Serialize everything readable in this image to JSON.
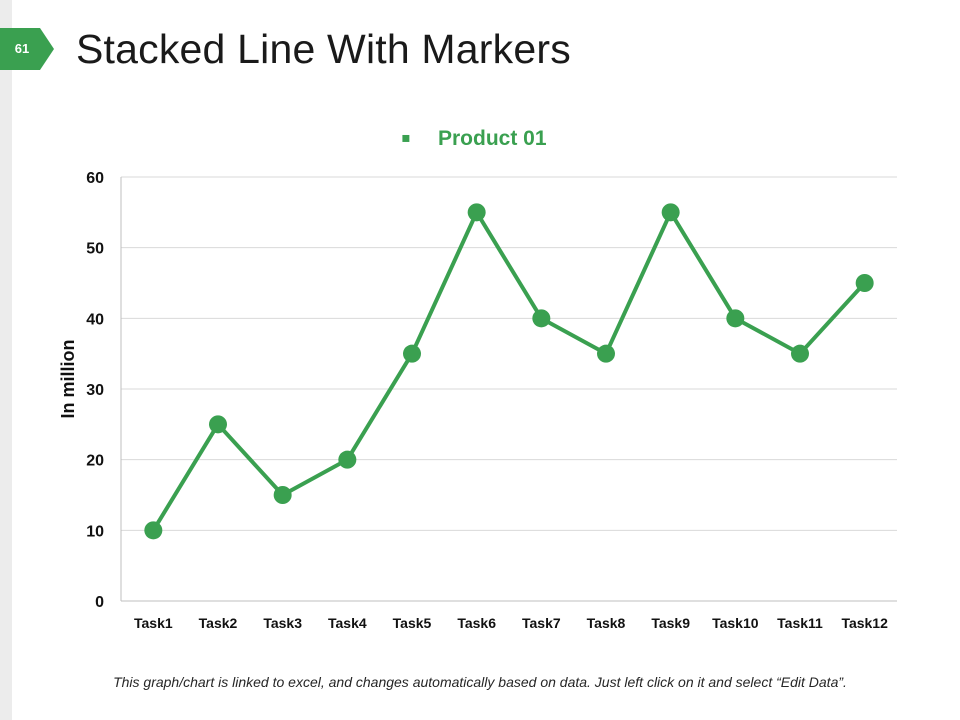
{
  "slide": {
    "page_number": "61",
    "title": "Stacked Line With Markers",
    "footnote": "This graph/chart is linked to excel, and changes automatically based on data. Just left click on it and select “Edit Data”.",
    "accent_color": "#3aa050"
  },
  "chart_data": {
    "type": "line",
    "title": "",
    "xlabel": "",
    "ylabel": "In million",
    "categories": [
      "Task1",
      "Task2",
      "Task3",
      "Task4",
      "Task5",
      "Task6",
      "Task7",
      "Task8",
      "Task9",
      "Task10",
      "Task11",
      "Task12"
    ],
    "series": [
      {
        "name": "Product 01",
        "color": "#3aa050",
        "values": [
          10,
          25,
          15,
          20,
          35,
          55,
          40,
          35,
          55,
          40,
          35,
          45
        ]
      }
    ],
    "ylim": [
      0,
      60
    ],
    "yticks": [
      0,
      10,
      20,
      30,
      40,
      50,
      60
    ],
    "grid": true,
    "legend": "top-center",
    "legend_marker": "▪"
  }
}
